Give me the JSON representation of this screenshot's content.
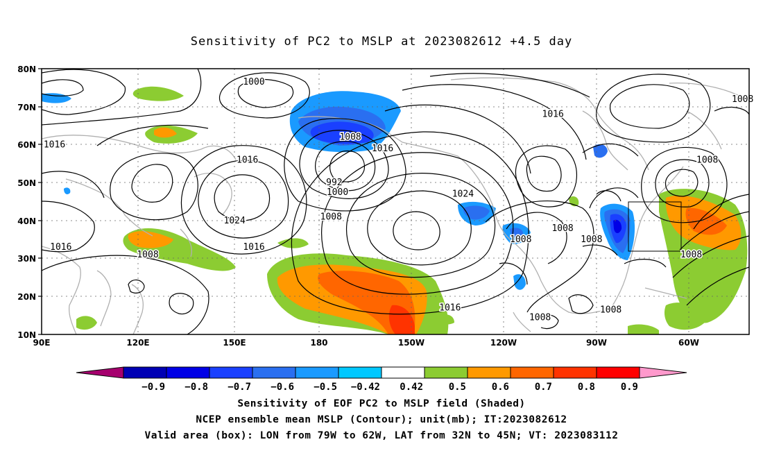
{
  "title": "Sensitivity of PC2 to MSLP at 2023082612 +4.5 day",
  "map": {
    "lat_ticks": [
      "80N",
      "70N",
      "60N",
      "50N",
      "40N",
      "30N",
      "20N",
      "10N"
    ],
    "lon_ticks": [
      "90E",
      "120E",
      "150E",
      "180",
      "150W",
      "120W",
      "90W",
      "60W"
    ],
    "extent": {
      "lon_min": 90,
      "lon_max": 310,
      "lat_min": 10,
      "lat_max": 80
    },
    "valid_box": {
      "lon_from": "79W",
      "lon_to": "62W",
      "lat_from": "32N",
      "lat_to": "45N"
    },
    "contour_labels": [
      {
        "text": "1000",
        "lon": 156,
        "lat": 76.5
      },
      {
        "text": "1016",
        "lon": 94,
        "lat": 60
      },
      {
        "text": "1016",
        "lon": 154,
        "lat": 56
      },
      {
        "text": "992",
        "lon": 181,
        "lat": 50
      },
      {
        "text": "1000",
        "lon": 182,
        "lat": 47.5
      },
      {
        "text": "1008",
        "lon": 186,
        "lat": 62
      },
      {
        "text": "1016",
        "lon": 196,
        "lat": 59
      },
      {
        "text": "1024",
        "lon": 150,
        "lat": 40
      },
      {
        "text": "1008",
        "lon": 180,
        "lat": 41
      },
      {
        "text": "1016",
        "lon": 156,
        "lat": 33
      },
      {
        "text": "1016",
        "lon": 96,
        "lat": 33
      },
      {
        "text": "1008",
        "lon": 123,
        "lat": 31
      },
      {
        "text": "1024",
        "lon": 221,
        "lat": 47
      },
      {
        "text": "1016",
        "lon": 217,
        "lat": 17
      },
      {
        "text": "1016",
        "lon": 249,
        "lat": 68
      },
      {
        "text": "1008",
        "lon": 308,
        "lat": 72
      },
      {
        "text": "1008",
        "lon": 297,
        "lat": 56
      },
      {
        "text": "1008",
        "lon": 252,
        "lat": 38
      },
      {
        "text": "1008",
        "lon": 239,
        "lat": 35
      },
      {
        "text": "1008",
        "lon": 261,
        "lat": 35
      },
      {
        "text": "1008",
        "lon": 292,
        "lat": 31
      },
      {
        "text": "1008",
        "lon": 267,
        "lat": 16.5
      },
      {
        "text": "1008",
        "lon": 245,
        "lat": 14.5
      }
    ]
  },
  "colorbar": {
    "levels": [
      "-0.9",
      "-0.8",
      "-0.7",
      "-0.6",
      "-0.5",
      "-0.42",
      "0.42",
      "0.5",
      "0.6",
      "0.7",
      "0.8",
      "0.9"
    ],
    "colors": [
      "#a6006e",
      "#0000b4",
      "#0000e6",
      "#1a40ff",
      "#2a6ff0",
      "#1a9aff",
      "#00c8ff",
      "#ffffff",
      "#8ccc32",
      "#ff9900",
      "#ff6600",
      "#ff3300",
      "#ff0000",
      "#ff99cc"
    ]
  },
  "captions": [
    "Sensitivity of EOF PC2 to MSLP field (Shaded)",
    "NCEP ensemble mean MSLP (Contour); unit(mb); IT:2023082612",
    "Valid area (box): LON from 79W to 62W, LAT from 32N to 45N; VT: 2023083112"
  ]
}
